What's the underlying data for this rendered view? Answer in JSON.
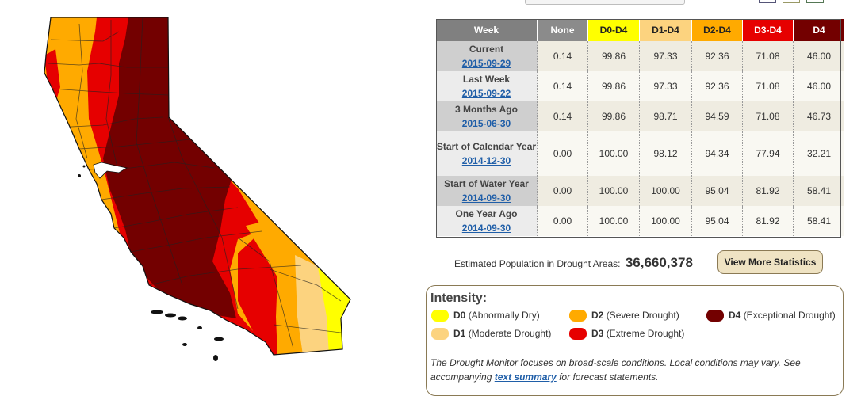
{
  "colors": {
    "none": "#8b8b8b",
    "d0": "#ffff00",
    "d1": "#fcd37f",
    "d2": "#ffaa00",
    "d3": "#e60000",
    "d4": "#730000",
    "header_gray": "#808080",
    "link": "#1f5ea8"
  },
  "table": {
    "headers": [
      "Week",
      "None",
      "D0-D4",
      "D1-D4",
      "D2-D4",
      "D3-D4",
      "D4"
    ],
    "rows": [
      {
        "label": "Current",
        "date": "2015-09-29",
        "values": [
          "0.14",
          "99.86",
          "97.33",
          "92.36",
          "71.08",
          "46.00"
        ]
      },
      {
        "label": "Last Week",
        "date": "2015-09-22",
        "values": [
          "0.14",
          "99.86",
          "97.33",
          "92.36",
          "71.08",
          "46.00"
        ]
      },
      {
        "label": "3 Months Ago",
        "date": "2015-06-30",
        "values": [
          "0.14",
          "99.86",
          "98.71",
          "94.59",
          "71.08",
          "46.73"
        ]
      },
      {
        "label": "Start of Calendar Year",
        "date": "2014-12-30",
        "values": [
          "0.00",
          "100.00",
          "98.12",
          "94.34",
          "77.94",
          "32.21"
        ]
      },
      {
        "label": "Start of Water Year",
        "date": "2014-09-30",
        "values": [
          "0.00",
          "100.00",
          "100.00",
          "95.04",
          "81.92",
          "58.41"
        ]
      },
      {
        "label": "One Year Ago",
        "date": "2014-09-30",
        "values": [
          "0.00",
          "100.00",
          "100.00",
          "95.04",
          "81.92",
          "58.41"
        ]
      }
    ]
  },
  "population": {
    "label": "Estimated Population in Drought Areas:",
    "value": "36,660,378"
  },
  "more_stats_button": "View More Statistics",
  "legend": {
    "title": "Intensity:",
    "items": [
      {
        "code": "D0",
        "desc": "(Abnormally Dry)"
      },
      {
        "code": "D1",
        "desc": "(Moderate Drought)"
      },
      {
        "code": "D2",
        "desc": "(Severe Drought)"
      },
      {
        "code": "D3",
        "desc": "(Extreme Drought)"
      },
      {
        "code": "D4",
        "desc": "(Exceptional Drought)"
      }
    ],
    "note_prefix": "The Drought Monitor focuses on broad-scale conditions. Local conditions may vary. See accompanying ",
    "note_link": "text summary",
    "note_suffix": " for forecast statements."
  }
}
